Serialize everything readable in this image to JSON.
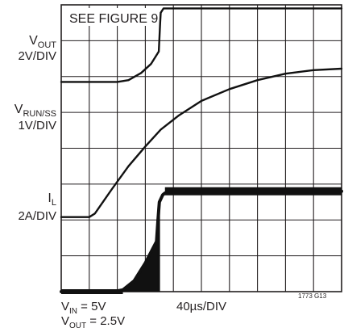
{
  "chart_data": {
    "type": "line",
    "title": "SEE FIGURE 9",
    "grid": true,
    "divisions": {
      "x": 10,
      "y": 8
    },
    "x_scale": "40µs/DIV",
    "x_range_div": [
      0,
      10
    ],
    "traces": [
      {
        "name_main": "V",
        "name_sub": "OUT",
        "scale": "2V/DIV",
        "unit_per_div": 2,
        "x_div": [
          0,
          1.0,
          2.0,
          2.4,
          2.85,
          3.2,
          3.48,
          3.53,
          3.55,
          3.65,
          4.0,
          10.0
        ],
        "y_div": [
          5.85,
          5.85,
          5.85,
          5.9,
          6.1,
          6.35,
          6.7,
          7.5,
          7.78,
          7.9,
          7.9,
          7.9
        ]
      },
      {
        "name_main": "V",
        "name_sub": "RUN/SS",
        "scale": "1V/DIV",
        "unit_per_div": 1,
        "x_div": [
          0,
          1.0,
          1.2,
          1.8,
          2.4,
          3.0,
          3.55,
          4.2,
          5.0,
          6.0,
          7.0,
          8.0,
          9.0,
          10.0
        ],
        "y_div": [
          2.08,
          2.08,
          2.18,
          2.85,
          3.5,
          4.05,
          4.52,
          4.92,
          5.32,
          5.65,
          5.9,
          6.08,
          6.18,
          6.22
        ]
      },
      {
        "name_main": "I",
        "name_sub": "L",
        "scale": "2A/DIV",
        "unit_per_div": 2,
        "x_div": [
          0,
          2.0,
          2.2,
          2.6,
          3.0,
          3.4,
          3.45,
          3.5,
          3.62,
          3.7,
          4.0,
          4.5,
          10.0
        ],
        "y_div": [
          0.0,
          0.02,
          0.05,
          0.3,
          0.8,
          1.4,
          2.0,
          2.5,
          2.7,
          2.75,
          2.78,
          2.8,
          2.8
        ],
        "ripple_x_range": [
          2.2,
          3.48
        ]
      }
    ],
    "conditions": {
      "vin": {
        "main": "V",
        "sub": "IN",
        "value": " = 5V"
      },
      "vout": {
        "main": "V",
        "sub": "OUT",
        "value": " = 2.5V"
      }
    },
    "figure_id": "1773 G13"
  },
  "colors": {
    "trace": "#111111",
    "grid": "#231f20"
  }
}
